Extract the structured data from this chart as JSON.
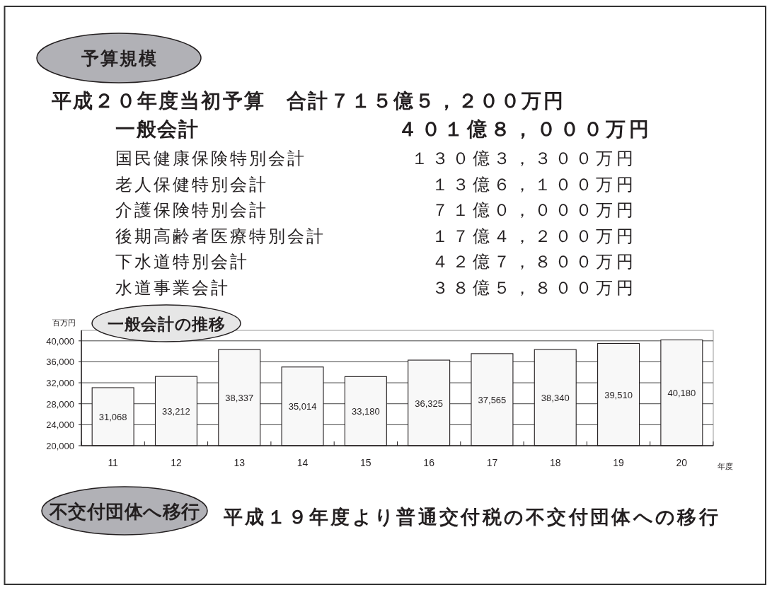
{
  "chart_data": {
    "type": "bar",
    "title": "一般会計の推移",
    "xlabel": "年度",
    "ylabel": "百万円",
    "categories": [
      "11",
      "12",
      "13",
      "14",
      "15",
      "16",
      "17",
      "18",
      "19",
      "20"
    ],
    "values": [
      31068,
      33212,
      38337,
      35014,
      33180,
      36325,
      37565,
      38340,
      39510,
      40180
    ],
    "value_labels": [
      "31,068",
      "33,212",
      "38,337",
      "35,014",
      "33,180",
      "36,325",
      "37,565",
      "38,340",
      "39,510",
      "40,180"
    ],
    "color": "#f8f8f8",
    "ylim": [
      20000,
      42000
    ],
    "yticks": [
      {
        "value": 20000,
        "label": "20,000"
      },
      {
        "value": 24000,
        "label": "24,000"
      },
      {
        "value": 28000,
        "label": "28,000"
      },
      {
        "value": 32000,
        "label": "32,000"
      },
      {
        "value": 36000,
        "label": "36,000"
      },
      {
        "value": 40000,
        "label": "40,000"
      }
    ],
    "grid": "y",
    "annotations": [
      "予算規模",
      "平成２０年度当初予算　合計７１５億５，２００万円",
      "一般会計",
      "４０１億８，０００万円",
      "国民健康保険特別会計",
      "１３０億３，３００万円",
      "老人保健特別会計",
      "１３億６，１００万円",
      "介護保険特別会計",
      "７１億０，０００万円",
      "後期高齢者医療特別会計",
      "１７億４，２００万円",
      "下水道特別会計",
      "４２億７，８００万円",
      "水道事業会計",
      "３８億５，８００万円",
      "不交付団体へ移行",
      "平成１９年度より普通交付税の不交付団体への移行"
    ]
  }
}
